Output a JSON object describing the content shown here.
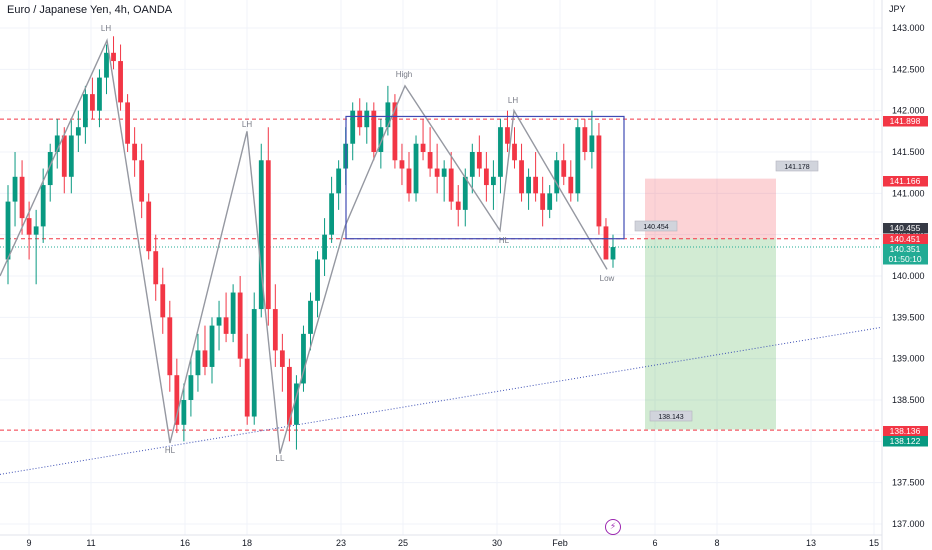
{
  "header": {
    "symbol": "Euro / Japanese Yen, 4h, OANDA",
    "currency": "JPY"
  },
  "chart_data": {
    "type": "candlestick",
    "instrument": "Euro / Japanese Yen",
    "timeframe": "4h",
    "broker": "OANDA",
    "y_axis": {
      "ticks": [
        "137.000",
        "137.500",
        "138.000",
        "138.500",
        "139.000",
        "139.500",
        "140.000",
        "140.500",
        "141.000",
        "141.500",
        "142.000",
        "142.500",
        "143.000"
      ],
      "range": [
        136.9,
        143.25
      ]
    },
    "x_axis": {
      "ticks": [
        "9",
        "11",
        "16",
        "18",
        "23",
        "25",
        "30",
        "Feb",
        "6",
        "8",
        "13",
        "15"
      ]
    },
    "price_labels": [
      {
        "value": "141.898",
        "color": "#f23645"
      },
      {
        "value": "141.166",
        "color": "#f23645"
      },
      {
        "value": "140.455",
        "color": "#363a45"
      },
      {
        "value": "140.451",
        "color": "#f23645"
      },
      {
        "value": "140.351",
        "color": "#22ab94"
      },
      {
        "value": "01:50:10",
        "color": "#22ab94"
      },
      {
        "value": "138.136",
        "color": "#f23645"
      },
      {
        "value": "138.122",
        "color": "#089981"
      }
    ],
    "horizontal_lines": [
      141.898,
      140.451,
      138.136
    ],
    "pattern_labels": [
      {
        "text": "LH",
        "price": 143.0,
        "x_label": "11"
      },
      {
        "text": "LH",
        "price": 141.8,
        "x_label": "18"
      },
      {
        "text": "HL",
        "price": 137.9,
        "x_label": "16"
      },
      {
        "text": "LL",
        "price": 137.8,
        "x_label": "18"
      },
      {
        "text": "High",
        "price": 142.45,
        "x_label": "25"
      },
      {
        "text": "LH",
        "price": 142.15,
        "x_label": "30"
      },
      {
        "text": "HL",
        "price": 140.4,
        "x_label": "30"
      },
      {
        "text": "Low",
        "price": 139.9,
        "x_label": "Feb"
      }
    ],
    "range_box": {
      "top": 141.93,
      "bottom": 140.451
    },
    "position": {
      "type": "short",
      "entry": 140.454,
      "stop": 141.178,
      "target": 138.143,
      "labels": [
        "141.178",
        "140.454",
        "138.143"
      ]
    },
    "trendline": {
      "from": 137.6,
      "to": 139.38,
      "style": "dotted"
    },
    "candles": [
      [
        140.2,
        141.1,
        139.9,
        140.9
      ],
      [
        140.9,
        141.5,
        140.6,
        141.2
      ],
      [
        141.2,
        141.4,
        140.5,
        140.7
      ],
      [
        140.7,
        140.9,
        140.2,
        140.5
      ],
      [
        140.5,
        140.8,
        139.9,
        140.6
      ],
      [
        140.6,
        141.3,
        140.4,
        141.1
      ],
      [
        141.1,
        141.6,
        140.9,
        141.5
      ],
      [
        141.5,
        141.9,
        141.3,
        141.7
      ],
      [
        141.7,
        141.8,
        141.0,
        141.2
      ],
      [
        141.2,
        141.9,
        141.0,
        141.7
      ],
      [
        141.7,
        142.0,
        141.5,
        141.8
      ],
      [
        141.8,
        142.3,
        141.6,
        142.2
      ],
      [
        142.2,
        142.4,
        141.9,
        142.0
      ],
      [
        142.0,
        142.5,
        141.8,
        142.4
      ],
      [
        142.4,
        142.8,
        142.2,
        142.7
      ],
      [
        142.7,
        142.9,
        142.5,
        142.6
      ],
      [
        142.6,
        142.8,
        142.0,
        142.1
      ],
      [
        142.1,
        142.2,
        141.5,
        141.6
      ],
      [
        141.6,
        141.8,
        141.2,
        141.4
      ],
      [
        141.4,
        141.6,
        140.7,
        140.9
      ],
      [
        140.9,
        141.0,
        140.2,
        140.3
      ],
      [
        140.3,
        140.5,
        139.7,
        139.9
      ],
      [
        139.9,
        140.1,
        139.3,
        139.5
      ],
      [
        139.5,
        139.7,
        138.6,
        138.8
      ],
      [
        138.8,
        139.0,
        138.1,
        138.2
      ],
      [
        138.2,
        138.7,
        138.0,
        138.5
      ],
      [
        138.5,
        139.0,
        138.3,
        138.8
      ],
      [
        138.8,
        139.3,
        138.6,
        139.1
      ],
      [
        139.1,
        139.4,
        138.8,
        138.9
      ],
      [
        138.9,
        139.5,
        138.7,
        139.4
      ],
      [
        139.4,
        139.7,
        139.1,
        139.5
      ],
      [
        139.5,
        139.8,
        139.2,
        139.3
      ],
      [
        139.3,
        139.9,
        139.2,
        139.8
      ],
      [
        139.8,
        140.0,
        138.9,
        139.0
      ],
      [
        139.0,
        139.3,
        138.2,
        138.3
      ],
      [
        138.3,
        139.8,
        138.2,
        139.6
      ],
      [
        139.6,
        141.6,
        139.5,
        141.4
      ],
      [
        141.4,
        141.8,
        139.4,
        139.6
      ],
      [
        139.6,
        139.9,
        138.9,
        139.1
      ],
      [
        139.1,
        139.3,
        138.6,
        138.9
      ],
      [
        138.9,
        139.0,
        138.0,
        138.2
      ],
      [
        138.2,
        138.8,
        137.9,
        138.7
      ],
      [
        138.7,
        139.4,
        138.6,
        139.3
      ],
      [
        139.3,
        139.8,
        139.1,
        139.7
      ],
      [
        139.7,
        140.3,
        139.5,
        140.2
      ],
      [
        140.2,
        140.7,
        140.0,
        140.5
      ],
      [
        140.5,
        141.2,
        140.4,
        141.0
      ],
      [
        141.0,
        141.4,
        140.8,
        141.3
      ],
      [
        141.3,
        141.8,
        141.1,
        141.6
      ],
      [
        141.6,
        142.1,
        141.4,
        142.0
      ],
      [
        142.0,
        142.15,
        141.7,
        141.8
      ],
      [
        141.8,
        142.1,
        141.6,
        142.0
      ],
      [
        142.0,
        142.1,
        141.4,
        141.5
      ],
      [
        141.5,
        141.9,
        141.3,
        141.8
      ],
      [
        141.8,
        142.3,
        141.7,
        142.1
      ],
      [
        142.1,
        142.2,
        141.3,
        141.4
      ],
      [
        141.4,
        141.6,
        141.1,
        141.3
      ],
      [
        141.3,
        141.5,
        140.9,
        141.0
      ],
      [
        141.0,
        141.7,
        140.9,
        141.6
      ],
      [
        141.6,
        141.9,
        141.4,
        141.5
      ],
      [
        141.5,
        141.8,
        141.2,
        141.3
      ],
      [
        141.3,
        141.6,
        141.0,
        141.2
      ],
      [
        141.2,
        141.4,
        140.9,
        141.3
      ],
      [
        141.3,
        141.5,
        140.8,
        140.9
      ],
      [
        140.9,
        141.1,
        140.6,
        140.8
      ],
      [
        140.8,
        141.3,
        140.6,
        141.2
      ],
      [
        141.2,
        141.6,
        141.0,
        141.5
      ],
      [
        141.5,
        141.7,
        141.2,
        141.3
      ],
      [
        141.3,
        141.5,
        140.9,
        141.1
      ],
      [
        141.1,
        141.4,
        140.8,
        141.2
      ],
      [
        141.2,
        141.9,
        141.0,
        141.8
      ],
      [
        141.8,
        142.0,
        141.5,
        141.6
      ],
      [
        141.6,
        141.8,
        141.3,
        141.4
      ],
      [
        141.4,
        141.6,
        140.9,
        141.0
      ],
      [
        141.0,
        141.3,
        140.8,
        141.2
      ],
      [
        141.2,
        141.5,
        140.9,
        141.0
      ],
      [
        141.0,
        141.2,
        140.6,
        140.8
      ],
      [
        140.8,
        141.1,
        140.7,
        141.0
      ],
      [
        141.0,
        141.5,
        140.9,
        141.4
      ],
      [
        141.4,
        141.6,
        141.1,
        141.2
      ],
      [
        141.2,
        141.4,
        140.9,
        141.0
      ],
      [
        141.0,
        141.9,
        140.9,
        141.8
      ],
      [
        141.8,
        141.9,
        141.4,
        141.5
      ],
      [
        141.5,
        142.0,
        141.3,
        141.7
      ],
      [
        141.7,
        141.85,
        140.5,
        140.6
      ],
      [
        140.6,
        140.7,
        140.2,
        140.2
      ],
      [
        140.2,
        140.5,
        140.1,
        140.35
      ]
    ]
  }
}
